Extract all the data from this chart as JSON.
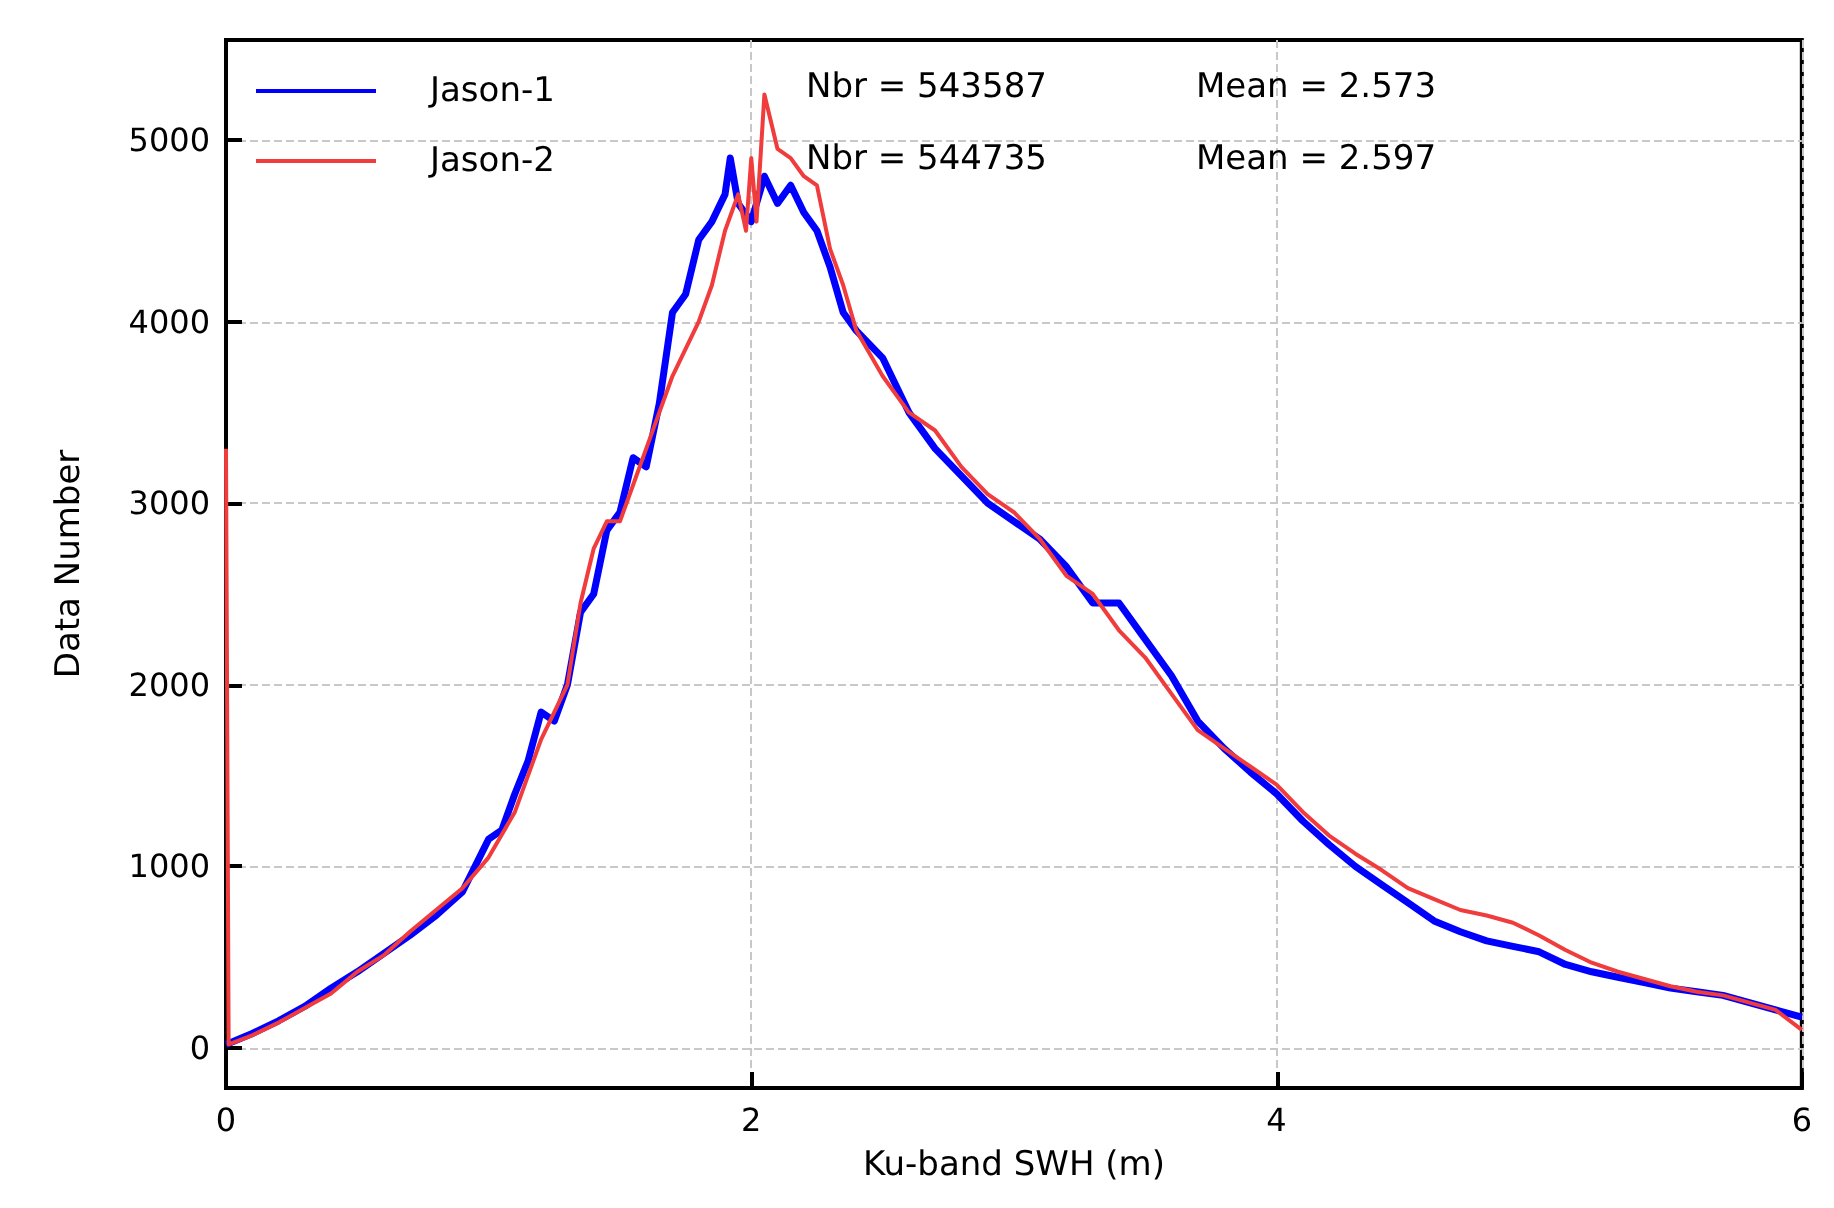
{
  "chart_data": {
    "type": "line",
    "xlabel": "Ku-band SWH (m)",
    "ylabel": "Data Number",
    "xlim": [
      0,
      6
    ],
    "xticks": [
      0,
      2,
      4,
      6
    ],
    "ylim": [
      -220,
      5550
    ],
    "yticks": [
      0,
      1000,
      2000,
      3000,
      4000,
      5000
    ],
    "grid": true,
    "legend": "top left",
    "marker": "none",
    "line_style": "solid",
    "annotations": [
      "Nbr = 543587",
      "Mean = 2.573",
      "Nbr = 544735",
      "Mean = 2.597"
    ],
    "series": [
      {
        "name": "Jason-1",
        "color": "#0000ff",
        "x": [
          0,
          0.1,
          0.2,
          0.3,
          0.4,
          0.5,
          0.6,
          0.7,
          0.8,
          0.9,
          1.0,
          1.05,
          1.1,
          1.15,
          1.2,
          1.25,
          1.3,
          1.35,
          1.4,
          1.45,
          1.5,
          1.55,
          1.6,
          1.65,
          1.7,
          1.75,
          1.8,
          1.85,
          1.9,
          1.92,
          1.95,
          2.0,
          2.05,
          2.1,
          2.15,
          2.2,
          2.25,
          2.3,
          2.35,
          2.4,
          2.5,
          2.6,
          2.7,
          2.8,
          2.9,
          3.0,
          3.1,
          3.2,
          3.3,
          3.4,
          3.5,
          3.6,
          3.7,
          3.8,
          3.9,
          4.0,
          4.1,
          4.2,
          4.3,
          4.4,
          4.5,
          4.6,
          4.7,
          4.8,
          4.9,
          5.0,
          5.1,
          5.2,
          5.3,
          5.4,
          5.5,
          5.6,
          5.7,
          5.8,
          5.9,
          6.0
        ],
        "values": [
          20,
          80,
          150,
          230,
          330,
          420,
          520,
          620,
          730,
          860,
          1150,
          1200,
          1400,
          1580,
          1850,
          1800,
          2000,
          2400,
          2500,
          2850,
          2950,
          3250,
          3200,
          3550,
          4050,
          4150,
          4450,
          4550,
          4700,
          4900,
          4650,
          4550,
          4800,
          4650,
          4750,
          4600,
          4500,
          4300,
          4050,
          3950,
          3800,
          3500,
          3300,
          3150,
          3000,
          2900,
          2800,
          2650,
          2450,
          2450,
          2250,
          2050,
          1800,
          1650,
          1520,
          1400,
          1250,
          1120,
          1000,
          900,
          800,
          700,
          640,
          590,
          560,
          530,
          460,
          420,
          390,
          360,
          330,
          310,
          290,
          250,
          210,
          170
        ]
      },
      {
        "name": "Jason-2",
        "color": "#f03c3c",
        "x": [
          0,
          0.01,
          0.1,
          0.2,
          0.3,
          0.4,
          0.5,
          0.6,
          0.7,
          0.8,
          0.9,
          1.0,
          1.1,
          1.2,
          1.3,
          1.35,
          1.4,
          1.45,
          1.5,
          1.55,
          1.6,
          1.7,
          1.8,
          1.85,
          1.9,
          1.95,
          1.98,
          2.0,
          2.02,
          2.05,
          2.1,
          2.15,
          2.2,
          2.25,
          2.3,
          2.35,
          2.4,
          2.5,
          2.6,
          2.7,
          2.8,
          2.9,
          3.0,
          3.1,
          3.2,
          3.3,
          3.4,
          3.5,
          3.6,
          3.7,
          3.8,
          3.9,
          4.0,
          4.1,
          4.2,
          4.3,
          4.4,
          4.5,
          4.6,
          4.7,
          4.8,
          4.9,
          5.0,
          5.1,
          5.2,
          5.3,
          5.4,
          5.5,
          5.6,
          5.7,
          5.8,
          5.9,
          6.0
        ],
        "values": [
          3300,
          20,
          70,
          140,
          220,
          300,
          420,
          510,
          640,
          760,
          880,
          1050,
          1300,
          1700,
          2000,
          2450,
          2750,
          2900,
          2900,
          3100,
          3300,
          3700,
          4000,
          4200,
          4500,
          4700,
          4500,
          4900,
          4550,
          5250,
          4950,
          4900,
          4800,
          4750,
          4400,
          4200,
          3950,
          3700,
          3500,
          3400,
          3200,
          3050,
          2950,
          2800,
          2600,
          2500,
          2300,
          2150,
          1950,
          1750,
          1650,
          1550,
          1450,
          1300,
          1170,
          1070,
          980,
          880,
          820,
          760,
          730,
          690,
          620,
          540,
          470,
          420,
          380,
          340,
          310,
          290,
          250,
          210,
          100
        ]
      }
    ]
  }
}
